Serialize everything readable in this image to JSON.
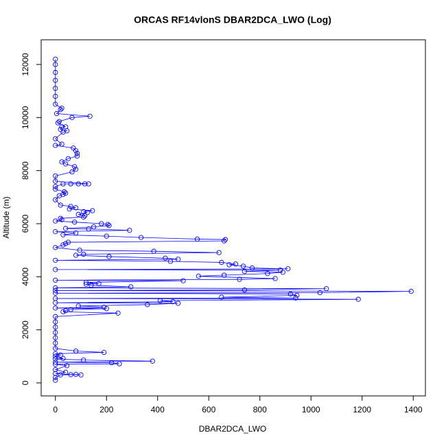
{
  "chart_data": {
    "type": "scatter",
    "title": "ORCAS RF14vlonS DBAR2DCA_LWO (Log)",
    "x_label": "DBAR2DCA_LWO",
    "y_label": "Altitude (m)",
    "xlim": [
      -55.7,
      1447.7
    ],
    "ylim": [
      -491,
      12930
    ],
    "xticks": [
      0,
      200,
      400,
      600,
      800,
      1000,
      1200,
      1400
    ],
    "yticks": [
      0,
      2000,
      4000,
      6000,
      8000,
      10000,
      12000
    ],
    "connect": true,
    "series": [
      {
        "color": "#0000ff",
        "x": [
          0,
          0,
          20,
          60,
          80,
          100,
          0,
          40,
          0,
          45,
          0,
          250,
          220,
          0,
          380,
          110,
          0,
          30,
          0,
          20,
          0,
          190,
          80,
          0,
          0,
          0,
          0,
          0,
          0,
          0,
          245,
          30,
          40,
          60,
          200,
          0,
          190,
          90,
          360,
          480,
          0,
          460,
          410,
          1185,
          0,
          940,
          650,
          945,
          920,
          0,
          1035,
          1392,
          0,
          740,
          1060,
          0,
          295,
          140,
          120,
          170,
          120,
          500,
          0,
          720,
          860,
          560,
          660,
          830,
          890,
          740,
          880,
          0,
          910,
          770,
          735,
          680,
          705,
          650,
          450,
          0,
          480,
          430,
          210,
          80,
          110,
          640,
          385,
          95,
          0,
          30,
          40,
          50,
          660,
          665,
          555,
          335,
          200,
          30,
          80,
          0,
          290,
          130,
          40,
          150,
          210,
          205,
          180,
          75,
          0,
          25,
          20,
          110,
          115,
          90,
          125,
          110,
          145,
          55,
          80,
          60,
          20,
          0,
          15,
          30,
          40,
          35,
          0,
          0,
          30,
          60,
          90,
          115,
          130,
          0,
          0,
          65,
          80,
          75,
          40,
          25,
          50,
          85,
          85,
          80,
          70,
          0,
          25,
          0,
          30,
          45,
          20,
          25,
          40,
          10,
          15,
          65,
          135,
          5,
          20,
          25,
          0,
          0,
          0,
          0,
          0,
          0,
          0
        ],
        "values": [
          100,
          200,
          300,
          310,
          320,
          300,
          350,
          400,
          500,
          650,
          700,
          720,
          760,
          780,
          820,
          860,
          900,
          920,
          1000,
          1050,
          1100,
          1150,
          1200,
          1300,
          1500,
          1700,
          1900,
          2100,
          2300,
          2500,
          2630,
          2680,
          2720,
          2760,
          2800,
          2820,
          2850,
          2900,
          2950,
          3000,
          3020,
          3060,
          3100,
          3150,
          3180,
          3200,
          3230,
          3300,
          3350,
          3380,
          3400,
          3450,
          3480,
          3500,
          3550,
          3580,
          3620,
          3680,
          3720,
          3740,
          3790,
          3850,
          3870,
          3900,
          3930,
          4020,
          4060,
          4120,
          4170,
          4200,
          4250,
          4270,
          4300,
          4330,
          4400,
          4450,
          4480,
          4540,
          4580,
          4620,
          4660,
          4700,
          4760,
          4810,
          4850,
          4910,
          4960,
          5000,
          5100,
          5200,
          5250,
          5300,
          5350,
          5400,
          5420,
          5480,
          5530,
          5580,
          5650,
          5700,
          5750,
          5800,
          5820,
          5880,
          5930,
          5970,
          6000,
          6060,
          6100,
          6150,
          6200,
          6250,
          6300,
          6350,
          6420,
          6450,
          6490,
          6550,
          6600,
          6650,
          6700,
          6900,
          7050,
          7100,
          7150,
          7200,
          7300,
          7400,
          7500,
          7500,
          7500,
          7500,
          7500,
          7600,
          7800,
          7950,
          8050,
          8150,
          8250,
          8330,
          8450,
          8550,
          8650,
          8750,
          8850,
          8950,
          9000,
          9200,
          9450,
          9500,
          9550,
          9650,
          9650,
          9800,
          9850,
          10000,
          10050,
          10150,
          10300,
          10350,
          10500,
          10800,
          11100,
          11400,
          11700,
          12000,
          12200
        ]
      }
    ]
  }
}
